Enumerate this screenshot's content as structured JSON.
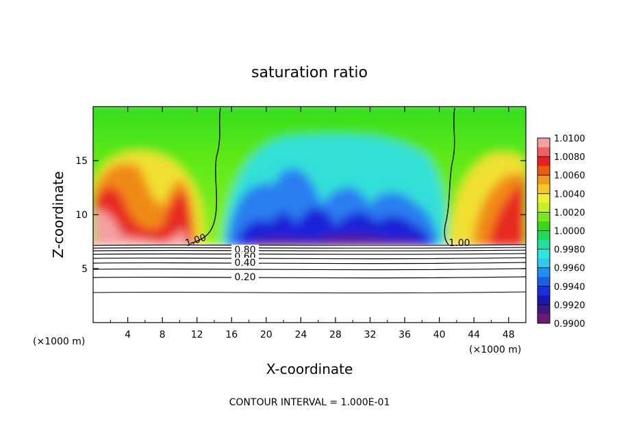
{
  "chart_data": {
    "type": "heatmap",
    "title": "saturation ratio",
    "xlabel": "X-coordinate",
    "ylabel": "Z-coordinate",
    "x_unit": "(×1000 m)",
    "y_unit": "(×1000 m)",
    "footer": "CONTOUR INTERVAL = 1.000E-01",
    "xlim": [
      0,
      50
    ],
    "ylim": [
      0,
      20
    ],
    "x_ticks": [
      "4",
      "8",
      "12",
      "16",
      "20",
      "24",
      "28",
      "32",
      "36",
      "40",
      "44",
      "48"
    ],
    "y_ticks": [
      "5",
      "10",
      "15"
    ],
    "colorbar": {
      "labels": [
        "1.0100",
        "1.0080",
        "1.0060",
        "1.0040",
        "1.0020",
        "1.0000",
        "0.9980",
        "0.9960",
        "0.9940",
        "0.9920",
        "0.9900"
      ],
      "colors": [
        "#f4a0a0",
        "#f06060",
        "#e82020",
        "#f05a0a",
        "#f49a1a",
        "#f8c828",
        "#eef030",
        "#c8f020",
        "#7ae818",
        "#38d818",
        "#20dc50",
        "#20e0a0",
        "#28e8e0",
        "#30c8f0",
        "#2090f0",
        "#1860e8",
        "#1830e0",
        "#1818b0",
        "#401880",
        "#701878"
      ]
    },
    "contour_labels": [
      "1.00",
      "1.00",
      "0.80",
      "0.60",
      "0.40",
      "0.20"
    ],
    "grid": false
  }
}
